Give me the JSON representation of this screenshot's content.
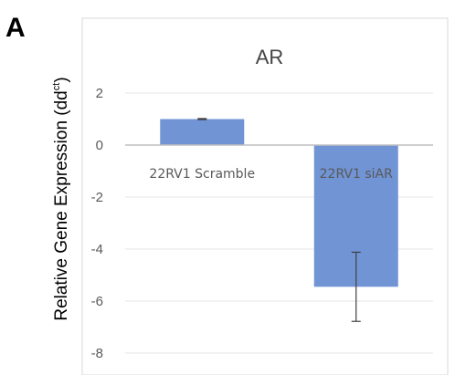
{
  "panel_label": "A",
  "chart_data": {
    "type": "bar",
    "title": "AR",
    "ylabel": {
      "main": "Relative Gene Expression (dd",
      "sup": "ct",
      "close": ")"
    },
    "categories": [
      "22RV1 Scramble",
      "22RV1 siAR"
    ],
    "values": [
      1.0,
      -5.45
    ],
    "error": [
      0.02,
      1.33
    ],
    "ylim": [
      -8.6,
      2.8
    ],
    "yticks": [
      2,
      0,
      -2,
      -4,
      -6,
      -8
    ],
    "grid": true,
    "legend": "none",
    "colors": {
      "bar": "#7094d4",
      "grid": "#e6e6e6",
      "zero_line": "#bfbfbf",
      "error_bar": "#404040"
    }
  }
}
